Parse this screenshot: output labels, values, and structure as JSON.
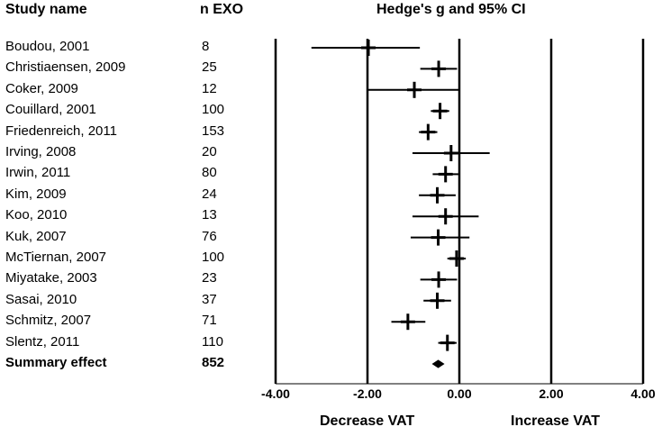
{
  "headers": {
    "study": "Study name",
    "n": "n EXO",
    "plot": "Hedge's g and 95% CI"
  },
  "chart_data": {
    "type": "forest",
    "title": "Hedge's g and 95% CI",
    "xlim": [
      -4,
      4
    ],
    "ticks": [
      -4,
      -2,
      0,
      2,
      4
    ],
    "tick_labels": [
      "-4.00",
      "-2.00",
      "0.00",
      "2.00",
      "4.00"
    ],
    "xlabel_left": "Decrease VAT",
    "xlabel_right": "Increase VAT",
    "studies": [
      {
        "name": "Boudou, 2001",
        "n": "8",
        "g": -1.98,
        "lo": -3.22,
        "hi": -0.86
      },
      {
        "name": "Christiaensen, 2009",
        "n": "25",
        "g": -0.45,
        "lo": -0.85,
        "hi": -0.05
      },
      {
        "name": "Coker, 2009",
        "n": "12",
        "g": -0.98,
        "lo": -1.98,
        "hi": 0.0
      },
      {
        "name": "Couillard, 2001",
        "n": "100",
        "g": -0.42,
        "lo": -0.62,
        "hi": -0.22
      },
      {
        "name": "Friedenreich, 2011",
        "n": "153",
        "g": -0.68,
        "lo": -0.88,
        "hi": -0.48
      },
      {
        "name": "Irving, 2008",
        "n": "20",
        "g": -0.18,
        "lo": -1.02,
        "hi": 0.66
      },
      {
        "name": "Irwin, 2011",
        "n": "80",
        "g": -0.3,
        "lo": -0.58,
        "hi": -0.02
      },
      {
        "name": "Kim, 2009",
        "n": "24",
        "g": -0.48,
        "lo": -0.88,
        "hi": -0.08
      },
      {
        "name": "Koo, 2010",
        "n": "13",
        "g": -0.3,
        "lo": -1.02,
        "hi": 0.42
      },
      {
        "name": "Kuk, 2007",
        "n": "76",
        "g": -0.46,
        "lo": -1.06,
        "hi": 0.22
      },
      {
        "name": "McTiernan, 2007",
        "n": "100",
        "g": -0.06,
        "lo": -0.26,
        "hi": 0.14
      },
      {
        "name": "Miyatake, 2003",
        "n": "23",
        "g": -0.45,
        "lo": -0.85,
        "hi": -0.05
      },
      {
        "name": "Sasai, 2010",
        "n": "37",
        "g": -0.48,
        "lo": -0.78,
        "hi": -0.18
      },
      {
        "name": "Schmitz, 2007",
        "n": "71",
        "g": -1.12,
        "lo": -1.48,
        "hi": -0.74
      },
      {
        "name": "Slentz, 2011",
        "n": "110",
        "g": -0.26,
        "lo": -0.46,
        "hi": -0.06
      }
    ],
    "summary": {
      "name": "Summary effect",
      "n": "852",
      "g": -0.46,
      "lo": -0.58,
      "hi": -0.34
    }
  }
}
